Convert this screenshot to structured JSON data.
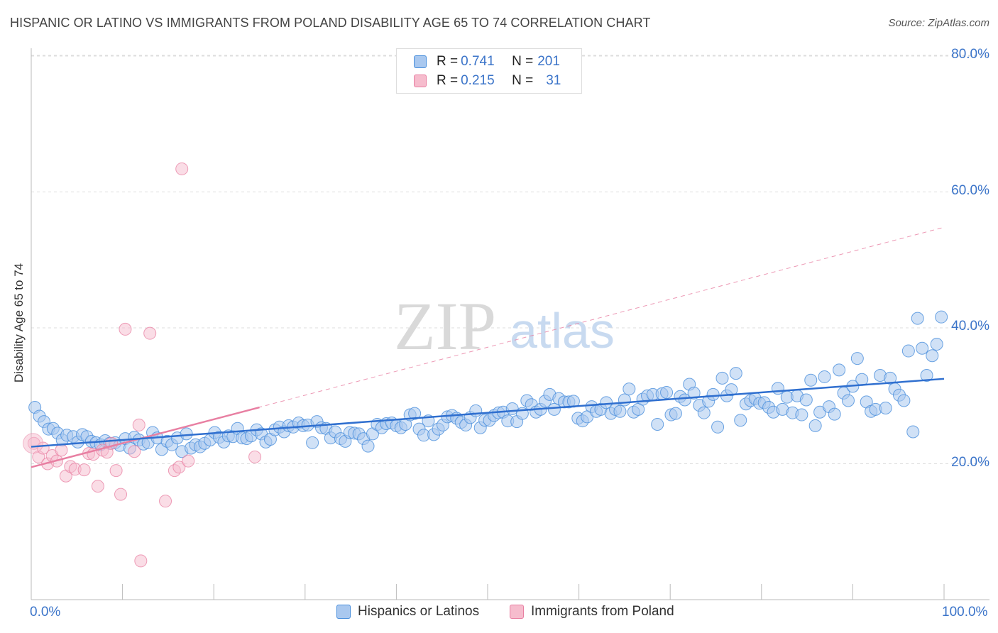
{
  "title": "HISPANIC OR LATINO VS IMMIGRANTS FROM POLAND DISABILITY AGE 65 TO 74 CORRELATION CHART",
  "source": "Source: ZipAtlas.com",
  "watermark": {
    "zip": "ZIP",
    "atlas": "atlas"
  },
  "legend": {
    "series1": {
      "r_label": "R = ",
      "r_value": "0.741",
      "n_label": "N = ",
      "n_value": "201"
    },
    "series2": {
      "r_label": "R = ",
      "r_value": "0.215",
      "n_label": "N = ",
      "n_value": "31"
    }
  },
  "colors": {
    "blue": "#4a8fdc",
    "blue_fill": "#a9c8ef",
    "pink": "#e87fa2",
    "pink_fill": "#f6bccd",
    "tick_text": "#3b74c9"
  },
  "chart_data": {
    "type": "scatter",
    "title": "HISPANIC OR LATINO VS IMMIGRANTS FROM POLAND DISABILITY AGE 65 TO 74 CORRELATION CHART",
    "xlabel": "",
    "ylabel": "Disability Age 65 to 74",
    "xlim": [
      0,
      100
    ],
    "ylim": [
      0,
      85
    ],
    "x_ticks": [
      "0.0%",
      "100.0%"
    ],
    "y_ticks": [
      {
        "value": 20,
        "label": "20.0%"
      },
      {
        "value": 40,
        "label": "40.0%"
      },
      {
        "value": 60,
        "label": "60.0%"
      },
      {
        "value": 80,
        "label": "80.0%"
      }
    ],
    "grid": true,
    "legend_position": "bottom",
    "series": [
      {
        "name": "Hispanics or Latinos",
        "color": "#4a8fdc",
        "trend": {
          "x0": 0,
          "y0": 22.5,
          "x1": 100,
          "y1": 32.5
        },
        "points": [
          [
            0.4,
            28.3
          ],
          [
            0.9,
            27.0
          ],
          [
            1.4,
            26.2
          ],
          [
            1.9,
            25.1
          ],
          [
            2.4,
            25.2
          ],
          [
            2.9,
            24.5
          ],
          [
            3.4,
            23.5
          ],
          [
            3.9,
            24.2
          ],
          [
            4.6,
            24.0
          ],
          [
            5.1,
            23.2
          ],
          [
            5.6,
            24.3
          ],
          [
            6.1,
            24.0
          ],
          [
            6.6,
            23.3
          ],
          [
            7.1,
            23.1
          ],
          [
            7.6,
            22.8
          ],
          [
            8.1,
            23.4
          ],
          [
            8.6,
            23.0
          ],
          [
            9.2,
            23.1
          ],
          [
            9.7,
            22.7
          ],
          [
            10.3,
            23.7
          ],
          [
            10.8,
            22.3
          ],
          [
            11.3,
            23.9
          ],
          [
            11.8,
            23.5
          ],
          [
            12.3,
            22.9
          ],
          [
            12.8,
            23.1
          ],
          [
            13.3,
            24.6
          ],
          [
            13.8,
            23.8
          ],
          [
            14.3,
            22.1
          ],
          [
            14.9,
            23.3
          ],
          [
            15.4,
            22.8
          ],
          [
            16.0,
            23.8
          ],
          [
            16.5,
            21.8
          ],
          [
            17.0,
            24.4
          ],
          [
            17.5,
            22.3
          ],
          [
            18.0,
            22.8
          ],
          [
            18.5,
            22.5
          ],
          [
            19.0,
            23.0
          ],
          [
            19.6,
            23.5
          ],
          [
            20.1,
            24.6
          ],
          [
            20.6,
            23.9
          ],
          [
            21.1,
            23.2
          ],
          [
            21.6,
            24.1
          ],
          [
            22.1,
            24.0
          ],
          [
            22.6,
            25.2
          ],
          [
            23.1,
            23.8
          ],
          [
            23.6,
            23.7
          ],
          [
            24.1,
            24.1
          ],
          [
            24.7,
            25.0
          ],
          [
            25.2,
            24.4
          ],
          [
            25.7,
            23.2
          ],
          [
            26.2,
            23.6
          ],
          [
            26.7,
            25.0
          ],
          [
            27.2,
            25.4
          ],
          [
            27.7,
            24.7
          ],
          [
            28.2,
            25.6
          ],
          [
            28.7,
            25.4
          ],
          [
            29.3,
            26.0
          ],
          [
            29.8,
            25.6
          ],
          [
            30.3,
            25.7
          ],
          [
            30.8,
            23.1
          ],
          [
            31.3,
            26.2
          ],
          [
            31.8,
            25.3
          ],
          [
            32.3,
            25.2
          ],
          [
            32.8,
            23.8
          ],
          [
            33.3,
            24.7
          ],
          [
            33.9,
            23.7
          ],
          [
            34.4,
            23.3
          ],
          [
            34.9,
            24.6
          ],
          [
            35.4,
            24.5
          ],
          [
            35.9,
            24.4
          ],
          [
            36.4,
            23.7
          ],
          [
            36.9,
            22.6
          ],
          [
            37.4,
            24.4
          ],
          [
            37.9,
            25.8
          ],
          [
            38.4,
            25.3
          ],
          [
            38.9,
            25.9
          ],
          [
            39.5,
            26.0
          ],
          [
            40.0,
            25.6
          ],
          [
            40.5,
            25.3
          ],
          [
            41.0,
            25.8
          ],
          [
            41.5,
            27.2
          ],
          [
            42.0,
            27.4
          ],
          [
            42.5,
            25.1
          ],
          [
            43.0,
            24.2
          ],
          [
            43.5,
            26.3
          ],
          [
            44.1,
            24.3
          ],
          [
            44.6,
            25.1
          ],
          [
            45.1,
            25.7
          ],
          [
            45.6,
            26.9
          ],
          [
            46.1,
            27.1
          ],
          [
            46.6,
            26.7
          ],
          [
            47.1,
            26.1
          ],
          [
            47.6,
            25.7
          ],
          [
            48.1,
            26.8
          ],
          [
            48.7,
            27.8
          ],
          [
            49.2,
            25.3
          ],
          [
            49.7,
            26.4
          ],
          [
            50.2,
            26.4
          ],
          [
            50.7,
            27.1
          ],
          [
            51.2,
            27.5
          ],
          [
            51.7,
            27.6
          ],
          [
            52.2,
            26.3
          ],
          [
            52.7,
            28.1
          ],
          [
            53.2,
            26.2
          ],
          [
            53.8,
            27.4
          ],
          [
            54.3,
            29.3
          ],
          [
            54.8,
            28.7
          ],
          [
            55.3,
            27.6
          ],
          [
            55.8,
            28.0
          ],
          [
            56.3,
            29.2
          ],
          [
            56.8,
            30.2
          ],
          [
            57.3,
            28.0
          ],
          [
            57.8,
            29.6
          ],
          [
            58.4,
            29.1
          ],
          [
            58.9,
            29.1
          ],
          [
            59.4,
            29.2
          ],
          [
            59.9,
            26.7
          ],
          [
            60.4,
            26.3
          ],
          [
            60.9,
            26.9
          ],
          [
            61.4,
            28.4
          ],
          [
            61.9,
            27.7
          ],
          [
            62.4,
            28.0
          ],
          [
            63.0,
            29.0
          ],
          [
            63.5,
            27.4
          ],
          [
            64.0,
            28.0
          ],
          [
            64.5,
            27.7
          ],
          [
            65.0,
            29.4
          ],
          [
            65.5,
            31.0
          ],
          [
            66.0,
            27.6
          ],
          [
            66.5,
            28.0
          ],
          [
            67.0,
            29.5
          ],
          [
            67.5,
            30.0
          ],
          [
            68.1,
            30.2
          ],
          [
            68.6,
            25.8
          ],
          [
            69.1,
            30.3
          ],
          [
            69.6,
            30.5
          ],
          [
            70.1,
            27.2
          ],
          [
            70.6,
            27.4
          ],
          [
            71.1,
            29.9
          ],
          [
            71.6,
            29.4
          ],
          [
            72.1,
            31.7
          ],
          [
            72.6,
            30.4
          ],
          [
            73.2,
            28.6
          ],
          [
            73.7,
            27.5
          ],
          [
            74.2,
            29.2
          ],
          [
            74.7,
            30.2
          ],
          [
            75.2,
            25.4
          ],
          [
            75.7,
            32.6
          ],
          [
            76.2,
            30.0
          ],
          [
            76.7,
            30.9
          ],
          [
            77.2,
            33.3
          ],
          [
            77.7,
            26.4
          ],
          [
            78.3,
            28.8
          ],
          [
            78.8,
            29.3
          ],
          [
            79.3,
            29.6
          ],
          [
            79.8,
            28.9
          ],
          [
            80.3,
            29.0
          ],
          [
            80.8,
            28.3
          ],
          [
            81.3,
            27.6
          ],
          [
            81.8,
            31.1
          ],
          [
            82.3,
            28.0
          ],
          [
            82.8,
            29.8
          ],
          [
            83.4,
            27.5
          ],
          [
            83.9,
            30.0
          ],
          [
            84.4,
            27.2
          ],
          [
            84.9,
            29.4
          ],
          [
            85.4,
            32.3
          ],
          [
            85.9,
            25.6
          ],
          [
            86.4,
            27.6
          ],
          [
            86.9,
            32.8
          ],
          [
            87.4,
            28.4
          ],
          [
            88.0,
            27.3
          ],
          [
            88.5,
            33.8
          ],
          [
            89.0,
            30.4
          ],
          [
            89.5,
            29.3
          ],
          [
            90.0,
            31.4
          ],
          [
            90.5,
            35.5
          ],
          [
            91.0,
            32.4
          ],
          [
            91.5,
            29.1
          ],
          [
            92.0,
            27.7
          ],
          [
            92.5,
            28.0
          ],
          [
            93.0,
            33.0
          ],
          [
            93.6,
            28.2
          ],
          [
            94.1,
            32.6
          ],
          [
            94.6,
            31.0
          ],
          [
            95.1,
            30.1
          ],
          [
            95.6,
            29.3
          ],
          [
            96.1,
            36.6
          ],
          [
            96.6,
            24.7
          ],
          [
            97.1,
            41.4
          ],
          [
            97.6,
            37.0
          ],
          [
            98.1,
            33.0
          ],
          [
            98.7,
            35.9
          ],
          [
            99.2,
            37.6
          ],
          [
            99.7,
            41.6
          ]
        ]
      },
      {
        "name": "Immigrants from Poland",
        "color": "#e87fa2",
        "trend": {
          "x0": 0,
          "y0": 19.5,
          "x1": 25,
          "y1": 28.3
        },
        "trend_extended": {
          "x0": 0,
          "y0": 19.5,
          "x1": 100,
          "y1": 54.8
        },
        "points": [
          [
            0.3,
            23.0
          ],
          [
            0.8,
            21.0
          ],
          [
            1.3,
            22.3
          ],
          [
            1.8,
            20.0
          ],
          [
            2.3,
            21.2
          ],
          [
            2.8,
            20.4
          ],
          [
            3.3,
            22.0
          ],
          [
            3.8,
            18.2
          ],
          [
            4.3,
            19.6
          ],
          [
            4.8,
            19.2
          ],
          [
            5.8,
            19.1
          ],
          [
            6.3,
            21.5
          ],
          [
            6.8,
            21.4
          ],
          [
            7.3,
            16.7
          ],
          [
            7.8,
            22.0
          ],
          [
            8.3,
            21.7
          ],
          [
            8.8,
            23.0
          ],
          [
            9.3,
            19.0
          ],
          [
            9.8,
            15.5
          ],
          [
            10.3,
            39.8
          ],
          [
            11.3,
            21.8
          ],
          [
            11.8,
            25.7
          ],
          [
            12.0,
            5.7
          ],
          [
            13.0,
            39.2
          ],
          [
            14.7,
            14.5
          ],
          [
            15.7,
            19.0
          ],
          [
            16.2,
            19.5
          ],
          [
            16.5,
            63.4
          ],
          [
            17.2,
            20.4
          ],
          [
            24.5,
            21.0
          ]
        ]
      }
    ]
  }
}
